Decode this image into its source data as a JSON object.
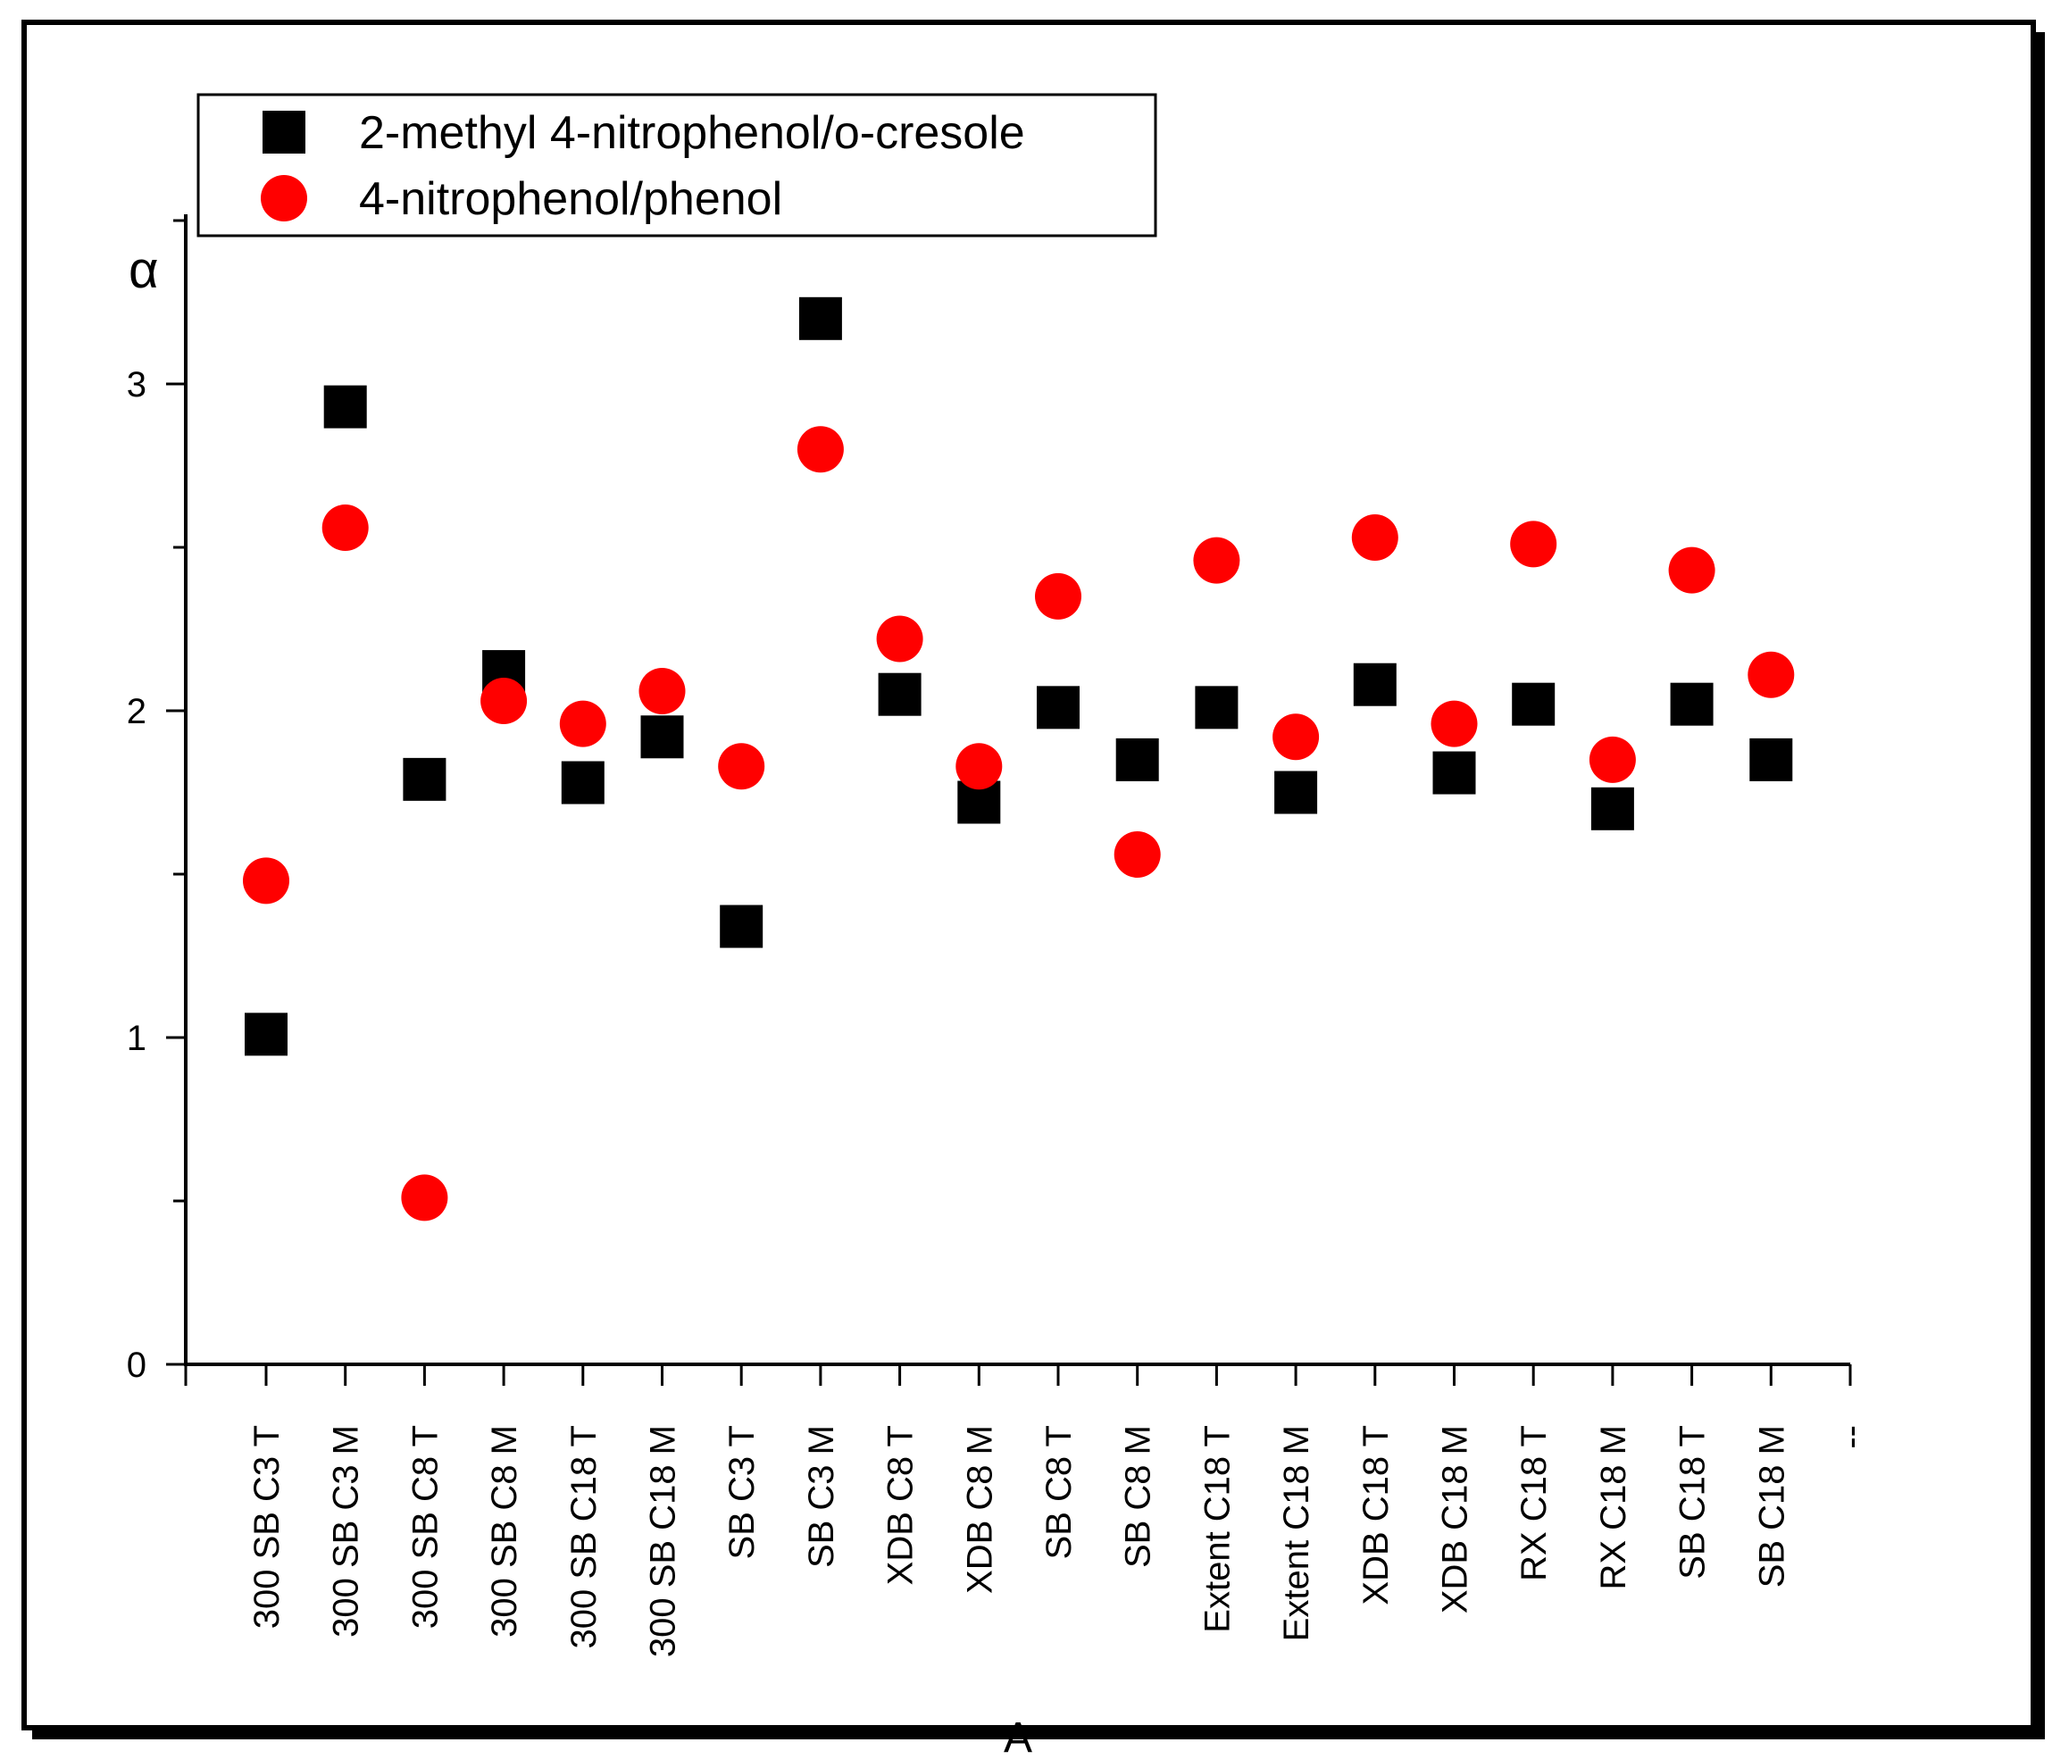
{
  "chart_data": {
    "type": "scatter",
    "ylabel": "α",
    "xlabel": "A",
    "ylim": [
      0,
      3.6
    ],
    "yticks": [
      0,
      1,
      2,
      3
    ],
    "grid": false,
    "legend_position": "top-left",
    "categories": [
      "300 SB C3 T",
      "300 SB C3 M",
      "300 SB C8 T",
      "300 SB C8 M",
      "300 SB C18 T",
      "300 SB C18 M",
      "SB C3 T",
      "SB C3 M",
      "XDB C8 T",
      "XDB C8 M",
      "SB C8 T",
      "SB C8 M",
      "Extent C18 T",
      "Extent C18 M",
      "XDB C18 T",
      "XDB C18 M",
      "RX C18 T",
      "RX C18 M",
      "SB C18 T",
      "SB C18 M",
      "--"
    ],
    "series": [
      {
        "name": "2-methyl 4-nitrophenol/o-cresole",
        "marker": "square",
        "color": "#000000",
        "values": [
          1.01,
          2.93,
          1.79,
          2.12,
          1.78,
          1.92,
          1.34,
          3.2,
          2.05,
          1.72,
          2.01,
          1.85,
          2.01,
          1.75,
          2.08,
          1.81,
          2.02,
          1.7,
          2.02,
          1.85
        ]
      },
      {
        "name": "4-nitrophenol/phenol",
        "marker": "circle",
        "color": "#ff0000",
        "values": [
          1.48,
          2.56,
          0.51,
          2.03,
          1.96,
          2.06,
          1.83,
          2.8,
          2.22,
          1.83,
          2.35,
          1.56,
          2.46,
          1.92,
          2.53,
          1.96,
          2.51,
          1.85,
          2.43,
          2.11
        ]
      }
    ]
  }
}
